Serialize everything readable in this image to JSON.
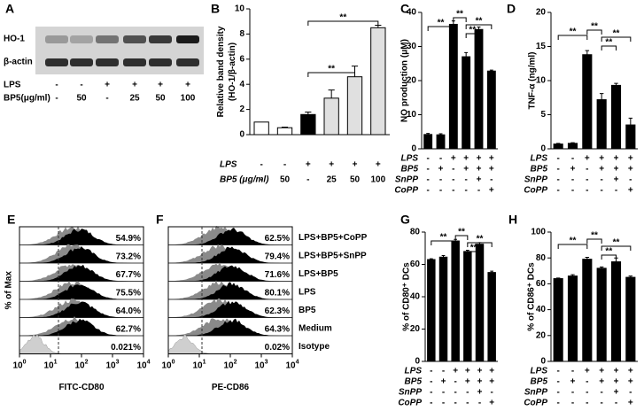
{
  "blot": {
    "panel": "A",
    "bands": [
      "HO-1",
      "β-actin"
    ],
    "conditions": [
      {
        "name": "LPS",
        "values": [
          "-",
          "-",
          "+",
          "+",
          "+",
          "+"
        ]
      },
      {
        "name": "BP5(μg/ml)",
        "values": [
          "-",
          "50",
          "-",
          "25",
          "50",
          "100"
        ]
      }
    ]
  },
  "chart_data": [
    {
      "type": "bar",
      "panel": "B",
      "ylabel": [
        "Relative band density",
        "(HO-1/β-actin)"
      ],
      "ylim": [
        0,
        10
      ],
      "yticks": [
        0,
        2,
        4,
        6,
        8,
        10
      ],
      "values": [
        1.0,
        0.55,
        1.6,
        2.9,
        4.6,
        8.5
      ],
      "errors": [
        0,
        0.05,
        0.2,
        0.65,
        0.85,
        0.2
      ],
      "colors": [
        "#ffffff",
        "#ffffff",
        "#000000",
        "#e0e0e0",
        "#e0e0e0",
        "#e0e0e0"
      ],
      "conditions": [
        {
          "name": "LPS",
          "values": [
            "-",
            "-",
            "+",
            "+",
            "+",
            "+"
          ]
        },
        {
          "name": "BP5 (μg/ml)",
          "values": [
            "-",
            "50",
            "-",
            "25",
            "50",
            "100"
          ]
        }
      ],
      "significance": [
        "**",
        "**"
      ]
    },
    {
      "type": "bar",
      "panel": "C",
      "ylabel": [
        "NO production (μM)"
      ],
      "ylim": [
        0,
        40
      ],
      "yticks": [
        0,
        10,
        20,
        30,
        40
      ],
      "values": [
        4.2,
        4.1,
        36.5,
        27,
        35,
        22.8
      ],
      "errors": [
        0.3,
        0.3,
        1.0,
        1.2,
        0.7,
        0.3
      ],
      "colors": [
        "#000000",
        "#000000",
        "#000000",
        "#000000",
        "#000000",
        "#000000"
      ],
      "conditions": [
        {
          "name": "LPS",
          "values": [
            "-",
            "-",
            "+",
            "+",
            "+",
            "+"
          ]
        },
        {
          "name": "BP5",
          "values": [
            "-",
            "+",
            "-",
            "+",
            "+",
            "+"
          ]
        },
        {
          "name": "SnPP",
          "values": [
            "-",
            "-",
            "-",
            "-",
            "+",
            "-"
          ]
        },
        {
          "name": "CoPP",
          "values": [
            "-",
            "-",
            "-",
            "-",
            "-",
            "+"
          ]
        }
      ],
      "significance": [
        "**",
        "**",
        "**",
        "**"
      ]
    },
    {
      "type": "bar",
      "panel": "D",
      "ylabel": [
        "TNF-α (ng/ml)"
      ],
      "ylim": [
        0,
        20
      ],
      "yticks": [
        0,
        5,
        10,
        15,
        20
      ],
      "values": [
        0.7,
        0.8,
        13.8,
        7.2,
        9.3,
        3.5
      ],
      "errors": [
        0.1,
        0.1,
        0.6,
        0.9,
        0.3,
        1.0
      ],
      "colors": [
        "#000000",
        "#000000",
        "#000000",
        "#000000",
        "#000000",
        "#000000"
      ],
      "conditions": [
        {
          "name": "LPS",
          "values": [
            "-",
            "-",
            "+",
            "+",
            "+",
            "+"
          ]
        },
        {
          "name": "BP5",
          "values": [
            "-",
            "+",
            "-",
            "+",
            "+",
            "+"
          ]
        },
        {
          "name": "SnPP",
          "values": [
            "-",
            "-",
            "-",
            "-",
            "+",
            "-"
          ]
        },
        {
          "name": "CoPP",
          "values": [
            "-",
            "-",
            "-",
            "-",
            "-",
            "+"
          ]
        }
      ],
      "significance": [
        "**",
        "**",
        "**",
        "**"
      ]
    },
    {
      "type": "bar",
      "panel": "G",
      "ylabel": [
        "% of CD80⁺ DCs"
      ],
      "ylim": [
        0,
        80
      ],
      "yticks": [
        0,
        20,
        40,
        60,
        80
      ],
      "values": [
        63,
        64.5,
        74.5,
        68,
        72.5,
        55
      ],
      "errors": [
        0.5,
        1,
        1,
        0.8,
        1,
        0.8
      ],
      "colors": [
        "#000000",
        "#000000",
        "#000000",
        "#000000",
        "#000000",
        "#000000"
      ],
      "conditions": [
        {
          "name": "LPS",
          "values": [
            "-",
            "-",
            "+",
            "+",
            "+",
            "+"
          ]
        },
        {
          "name": "BP5",
          "values": [
            "-",
            "+",
            "-",
            "+",
            "+",
            "+"
          ]
        },
        {
          "name": "SnPP",
          "values": [
            "-",
            "-",
            "-",
            "-",
            "+",
            "-"
          ]
        },
        {
          "name": "CoPP",
          "values": [
            "-",
            "-",
            "-",
            "-",
            "-",
            "+"
          ]
        }
      ],
      "significance": [
        "**",
        "**",
        "**",
        "**"
      ]
    },
    {
      "type": "bar",
      "panel": "H",
      "ylabel": [
        "% of CD86⁺ DCs"
      ],
      "ylim": [
        0,
        100
      ],
      "yticks": [
        0,
        20,
        40,
        60,
        80,
        100
      ],
      "values": [
        64,
        66,
        79,
        72,
        77,
        65
      ],
      "errors": [
        0.5,
        1,
        1.5,
        1,
        3,
        1
      ],
      "colors": [
        "#000000",
        "#000000",
        "#000000",
        "#000000",
        "#000000",
        "#000000"
      ],
      "conditions": [
        {
          "name": "LPS",
          "values": [
            "-",
            "-",
            "+",
            "+",
            "+",
            "+"
          ]
        },
        {
          "name": "BP5",
          "values": [
            "-",
            "+",
            "-",
            "+",
            "+",
            "+"
          ]
        },
        {
          "name": "SnPP",
          "values": [
            "-",
            "-",
            "-",
            "-",
            "+",
            "-"
          ]
        },
        {
          "name": "CoPP",
          "values": [
            "-",
            "-",
            "-",
            "-",
            "-",
            "+"
          ]
        }
      ],
      "significance": [
        "**",
        "**",
        "**",
        "**"
      ]
    }
  ],
  "flow": [
    {
      "panel": "E",
      "xlabel": "FITC-CD80",
      "ylabel": "% of Max",
      "xticks": [
        {
          "base": "10",
          "exp": "0"
        },
        {
          "base": "10",
          "exp": "1"
        },
        {
          "base": "10",
          "exp": "2"
        },
        {
          "base": "10",
          "exp": "3"
        },
        {
          "base": "10",
          "exp": "4"
        }
      ],
      "percents": [
        "54.9%",
        "73.2%",
        "67.7%",
        "75.5%",
        "64.0%",
        "62.7%",
        "0.021%"
      ]
    },
    {
      "panel": "F",
      "xlabel": "PE-CD86",
      "xticks": [
        {
          "base": "10",
          "exp": "0"
        },
        {
          "base": "10",
          "exp": "1"
        },
        {
          "base": "10",
          "exp": "2"
        },
        {
          "base": "10",
          "exp": "3"
        },
        {
          "base": "10",
          "exp": "4"
        }
      ],
      "percents": [
        "62.5%",
        "79.4%",
        "71.6%",
        "80.1%",
        "62.3%",
        "64.3%",
        "0.02%"
      ],
      "conditions": [
        "LPS+BP5+CoPP",
        "LPS+BP5+SnPP",
        "LPS+BP5",
        "LPS",
        "BP5",
        "Medium",
        "Isotype"
      ]
    }
  ]
}
